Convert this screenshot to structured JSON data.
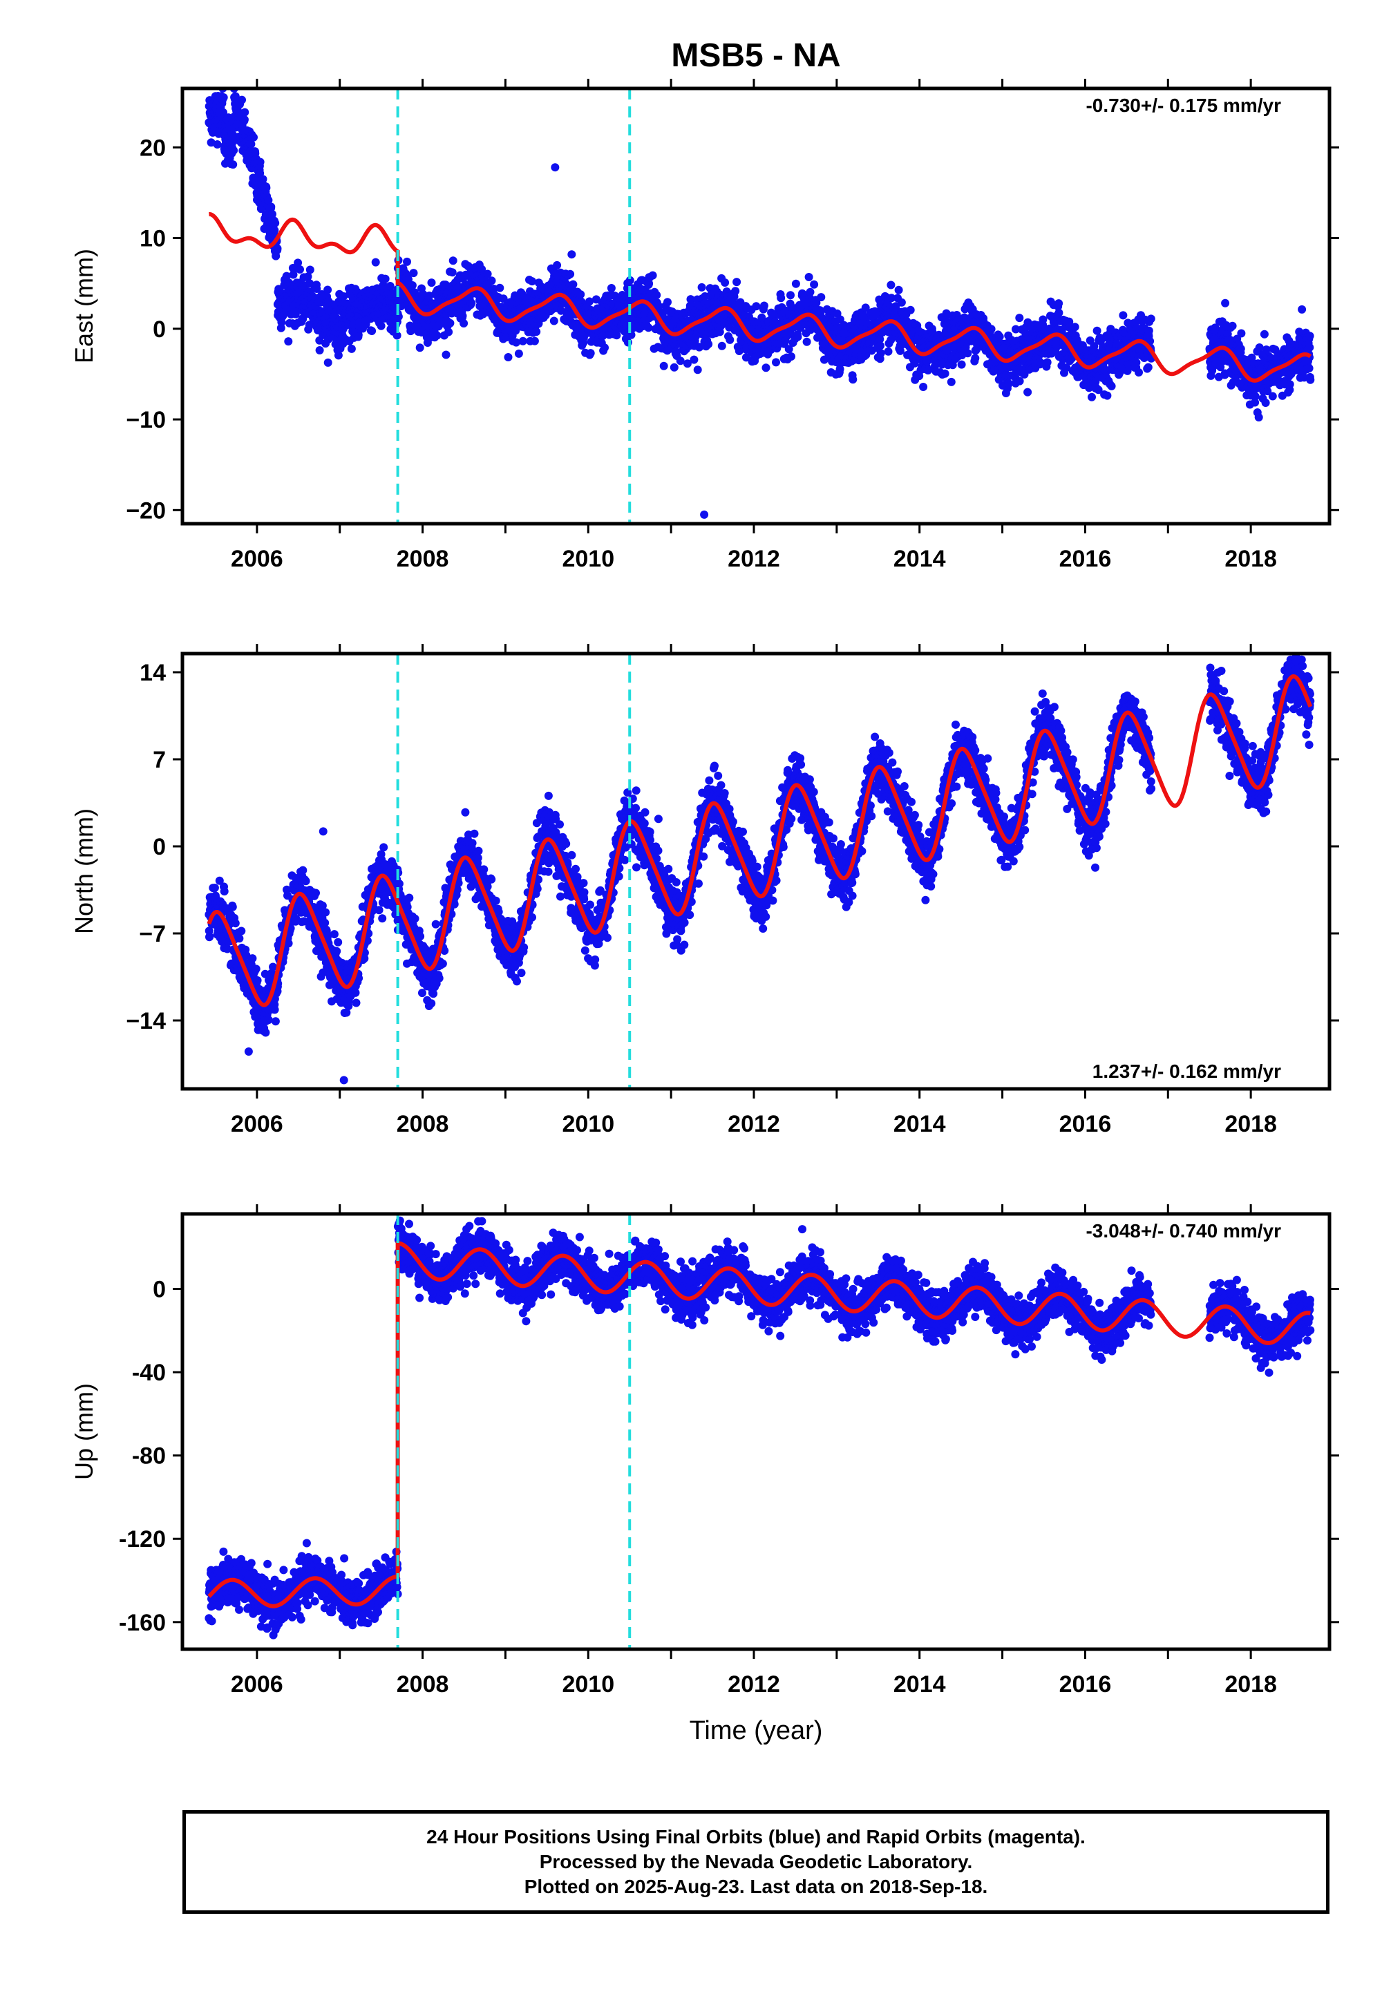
{
  "title": "MSB5 - NA",
  "xlabel": "Time (year)",
  "colors": {
    "data": "#1010ee",
    "model": "#ee1111",
    "break": "#22dddd",
    "axis": "#000000"
  },
  "chart_data": [
    {
      "type": "scatter",
      "panel": "east",
      "ylabel": "East (mm)",
      "rate_text": "-0.730+/- 0.175 mm/yr",
      "rate_pos": "top-right",
      "xlim": [
        2005.1,
        2018.95
      ],
      "ylim": [
        -21.5,
        26.5
      ],
      "yticks": [
        20,
        10,
        0,
        -10,
        -20
      ],
      "yticklabels": [
        "20",
        "10",
        "0",
        "−10",
        "−20"
      ],
      "xticks": [
        2006,
        2008,
        2010,
        2012,
        2014,
        2016,
        2018
      ],
      "xticklabels": [
        "2006",
        "2008",
        "2010",
        "2012",
        "2014",
        "2016",
        "2018"
      ],
      "break_lines": [
        2007.7,
        2010.5
      ],
      "outliers": [
        [
          2009.6,
          17.8
        ],
        [
          2009.8,
          8.2
        ],
        [
          2011.4,
          -20.5
        ],
        [
          2007.55,
          5.5
        ]
      ],
      "model_description": "red fitted model: pre-break trend plus annual signal, then linear trend -0.73 mm/yr with seasonal terms"
    },
    {
      "type": "scatter",
      "panel": "north",
      "ylabel": "North (mm)",
      "rate_text": "1.237+/- 0.162 mm/yr",
      "rate_pos": "bottom-right",
      "xlim": [
        2005.1,
        2018.95
      ],
      "ylim": [
        -19.5,
        15.5
      ],
      "yticks": [
        14,
        7,
        0,
        -7,
        -14
      ],
      "yticklabels": [
        "14",
        "7",
        "0",
        "−7",
        "−14"
      ],
      "xticks": [
        2006,
        2008,
        2010,
        2012,
        2014,
        2016,
        2018
      ],
      "xticklabels": [
        "2006",
        "2008",
        "2010",
        "2012",
        "2014",
        "2016",
        "2018"
      ],
      "break_lines": [
        2007.7,
        2010.5
      ],
      "outliers": [
        [
          2006.8,
          1.2
        ],
        [
          2007.05,
          -18.8
        ],
        [
          2005.9,
          -16.5
        ]
      ],
      "model_description": "red fitted model: rising trend with strong annual oscillation (~4.5 mm amplitude)"
    },
    {
      "type": "scatter",
      "panel": "up",
      "ylabel": "Up (mm)",
      "rate_text": "-3.048+/- 0.740 mm/yr",
      "rate_pos": "top-right",
      "xlim": [
        2005.1,
        2018.95
      ],
      "ylim": [
        -173,
        36
      ],
      "yticks": [
        0,
        -40,
        -80,
        -120,
        -160
      ],
      "yticklabels": [
        "0",
        "-40",
        "-80",
        "-120",
        "-160"
      ],
      "xticks": [
        2006,
        2008,
        2010,
        2012,
        2014,
        2016,
        2018
      ],
      "xticklabels": [
        "2006",
        "2008",
        "2010",
        "2012",
        "2014",
        "2016",
        "2018"
      ],
      "break_lines": [
        2007.7,
        2010.5
      ],
      "outliers": [
        [
          2016.2,
          -34
        ]
      ],
      "model_description": "red fitted model: near -145 mm before 2007.7 offset, jumps to ~+20 mm then declining seasonal series"
    }
  ],
  "footer": {
    "line1": "24 Hour Positions Using Final Orbits (blue) and Rapid Orbits (magenta).",
    "line2": "Processed by the Nevada Geodetic Laboratory.",
    "line3": "Plotted on 2025-Aug-23. Last data on 2018-Sep-18."
  }
}
